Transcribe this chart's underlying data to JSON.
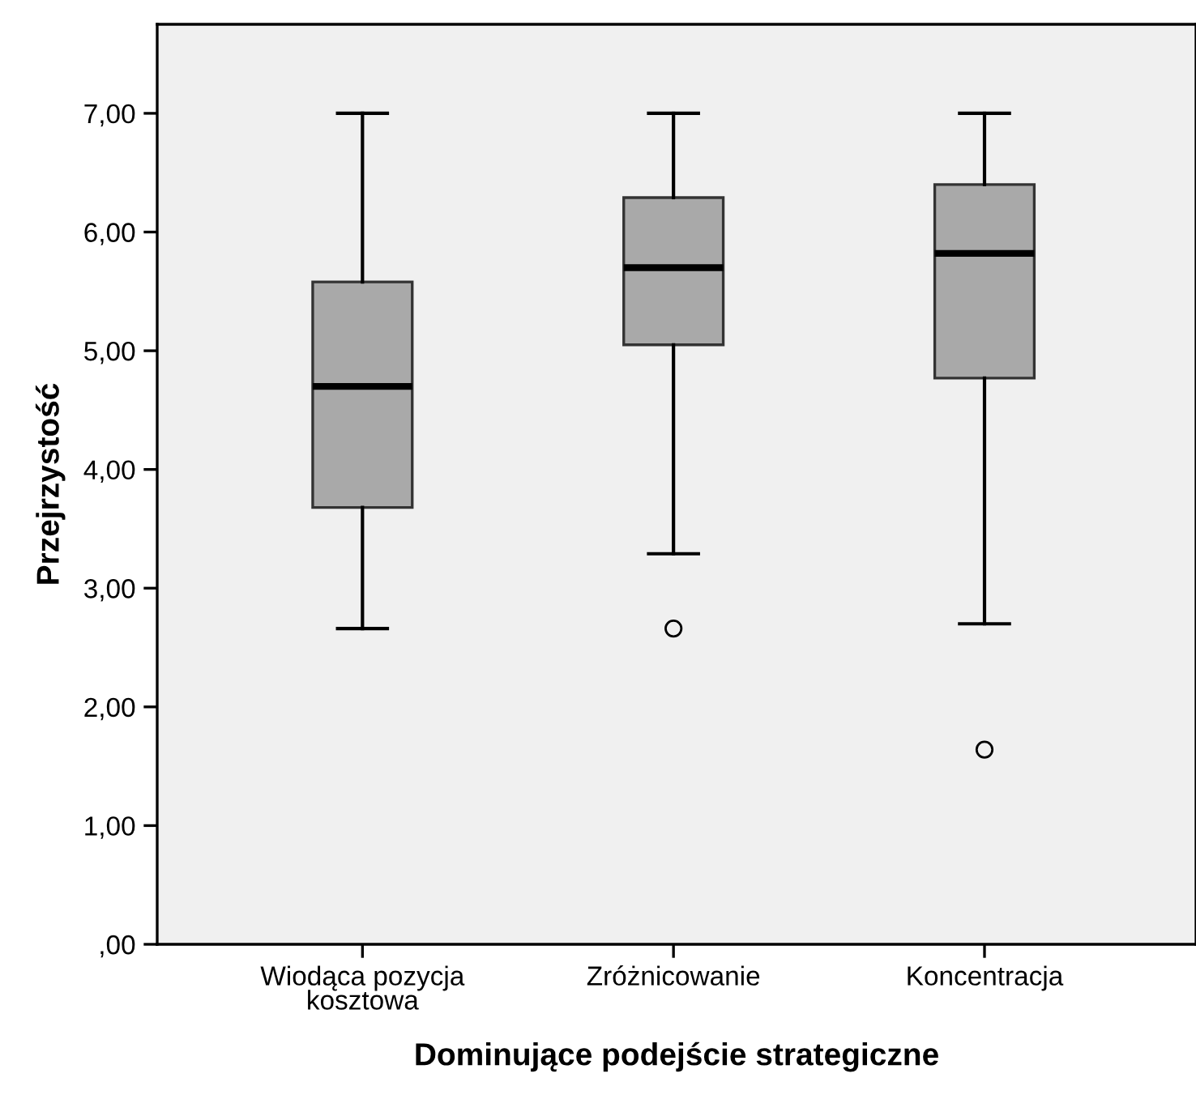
{
  "chart_data": {
    "type": "box",
    "xlabel": "Dominujące podejście strategiczne",
    "ylabel": "Przejrzystość",
    "categories": [
      "Wiodąca pozycja\nkosztowa",
      "Zróżnicowanie",
      "Koncentracja"
    ],
    "color": "#a9a9a9",
    "boxes": [
      {
        "low": 2.66,
        "q1": 3.68,
        "median": 4.7,
        "q3": 5.58,
        "high": 7.0
      },
      {
        "low": 3.29,
        "q1": 5.05,
        "median": 5.7,
        "q3": 6.29,
        "high": 7.0,
        "outliers": [
          2.66
        ]
      },
      {
        "low": 2.7,
        "q1": 4.77,
        "median": 5.82,
        "q3": 6.4,
        "high": 7.0,
        "outliers": [
          1.64
        ]
      }
    ],
    "ylim": [
      0,
      7.75
    ],
    "yticks": [
      {
        "value": 0,
        "label": ",00"
      },
      {
        "value": 1,
        "label": "1,00"
      },
      {
        "value": 2,
        "label": "2,00"
      },
      {
        "value": 3,
        "label": "3,00"
      },
      {
        "value": 4,
        "label": "4,00"
      },
      {
        "value": 5,
        "label": "5,00"
      },
      {
        "value": 6,
        "label": "6,00"
      },
      {
        "value": 7,
        "label": "7,00"
      }
    ],
    "grid": false,
    "legend": false
  }
}
